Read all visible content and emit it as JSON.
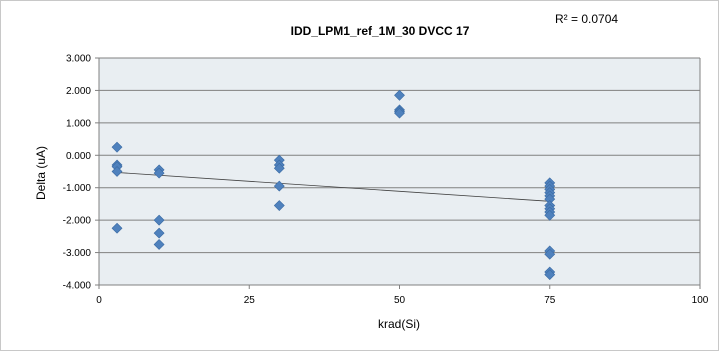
{
  "chart_data": {
    "type": "scatter",
    "title": "IDD_LPM1_ref_1M_30 DVCC 17",
    "xlabel": "krad(Si)",
    "ylabel": "Delta (uA)",
    "r2_label": "R² = 0.0704",
    "xlim": [
      0,
      100
    ],
    "ylim": [
      -4.0,
      3.0
    ],
    "x_ticks": [
      0,
      25,
      50,
      75,
      100
    ],
    "x_tick_labels": [
      "0",
      "25",
      "50",
      "75",
      "100"
    ],
    "y_ticks": [
      3.0,
      2.0,
      1.0,
      0.0,
      -1.0,
      -2.0,
      -3.0,
      -4.0
    ],
    "y_tick_labels": [
      "3.000",
      "2.000",
      "1.000",
      "0.000",
      "-1.000",
      "-2.000",
      "-3.000",
      "-4.000"
    ],
    "grid": true,
    "plot_background": "#e9eef2",
    "marker_color": "#4f81bd",
    "trendline": {
      "x": [
        3,
        75
      ],
      "y": [
        -0.53,
        -1.42
      ]
    },
    "points": [
      [
        3,
        0.25
      ],
      [
        3,
        -0.3
      ],
      [
        3,
        -0.35
      ],
      [
        3,
        -0.5
      ],
      [
        3,
        -2.25
      ],
      [
        10,
        -0.45
      ],
      [
        10,
        -0.55
      ],
      [
        10,
        -2.0
      ],
      [
        10,
        -2.4
      ],
      [
        10,
        -2.75
      ],
      [
        30,
        -0.15
      ],
      [
        30,
        -0.3
      ],
      [
        30,
        -0.4
      ],
      [
        30,
        -0.95
      ],
      [
        30,
        -1.55
      ],
      [
        50,
        1.85
      ],
      [
        50,
        1.4
      ],
      [
        50,
        1.35
      ],
      [
        50,
        1.3
      ],
      [
        75,
        -0.85
      ],
      [
        75,
        -0.95
      ],
      [
        75,
        -1.05
      ],
      [
        75,
        -1.15
      ],
      [
        75,
        -1.25
      ],
      [
        75,
        -1.35
      ],
      [
        75,
        -1.55
      ],
      [
        75,
        -1.65
      ],
      [
        75,
        -1.75
      ],
      [
        75,
        -1.85
      ],
      [
        75,
        -2.95
      ],
      [
        75,
        -3.05
      ],
      [
        75,
        -3.6
      ],
      [
        75,
        -3.68
      ]
    ]
  }
}
